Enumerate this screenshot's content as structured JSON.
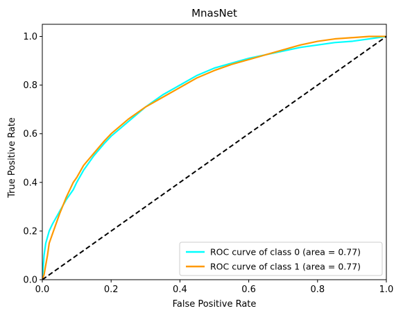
{
  "chart_data": {
    "type": "line",
    "title": "MnasNet",
    "xlabel": "False Positive Rate",
    "ylabel": "True Positive Rate",
    "xlim": [
      0.0,
      1.0
    ],
    "ylim": [
      0.0,
      1.05
    ],
    "xticks": [
      0.0,
      0.2,
      0.4,
      0.6,
      0.8,
      1.0
    ],
    "xtick_labels": [
      "0.0",
      "0.2",
      "0.4",
      "0.6",
      "0.8",
      "1.0"
    ],
    "yticks": [
      0.0,
      0.2,
      0.4,
      0.6,
      0.8,
      1.0
    ],
    "ytick_labels": [
      "0.0",
      "0.2",
      "0.4",
      "0.6",
      "0.8",
      "1.0"
    ],
    "grid": false,
    "legend_position": "lower-right",
    "series": [
      {
        "name": "ROC curve of class 0 (area = 0.77)",
        "color": "#00ffff",
        "x": [
          0.0,
          0.005,
          0.01,
          0.02,
          0.03,
          0.05,
          0.07,
          0.09,
          0.1,
          0.12,
          0.15,
          0.18,
          0.2,
          0.25,
          0.3,
          0.35,
          0.4,
          0.45,
          0.5,
          0.55,
          0.6,
          0.65,
          0.7,
          0.75,
          0.8,
          0.85,
          0.9,
          0.95,
          1.0
        ],
        "y": [
          0.0,
          0.1,
          0.15,
          0.2,
          0.23,
          0.28,
          0.33,
          0.37,
          0.4,
          0.45,
          0.51,
          0.56,
          0.59,
          0.65,
          0.71,
          0.76,
          0.8,
          0.84,
          0.87,
          0.89,
          0.91,
          0.925,
          0.94,
          0.955,
          0.965,
          0.975,
          0.98,
          0.99,
          1.0
        ]
      },
      {
        "name": "ROC curve of class 1 (area = 0.77)",
        "color": "#ff9900",
        "x": [
          0.0,
          0.005,
          0.01,
          0.015,
          0.02,
          0.03,
          0.05,
          0.07,
          0.09,
          0.1,
          0.12,
          0.15,
          0.18,
          0.2,
          0.25,
          0.3,
          0.35,
          0.4,
          0.45,
          0.5,
          0.55,
          0.6,
          0.65,
          0.7,
          0.75,
          0.8,
          0.85,
          0.9,
          0.95,
          1.0
        ],
        "y": [
          0.0,
          0.02,
          0.06,
          0.1,
          0.15,
          0.19,
          0.27,
          0.34,
          0.4,
          0.42,
          0.47,
          0.52,
          0.57,
          0.6,
          0.66,
          0.71,
          0.75,
          0.79,
          0.83,
          0.86,
          0.885,
          0.905,
          0.925,
          0.945,
          0.965,
          0.98,
          0.99,
          0.995,
          1.0,
          1.0
        ]
      }
    ],
    "reference_line": {
      "x": [
        0.0,
        1.0
      ],
      "y": [
        0.0,
        1.0
      ],
      "color": "#000000"
    }
  }
}
